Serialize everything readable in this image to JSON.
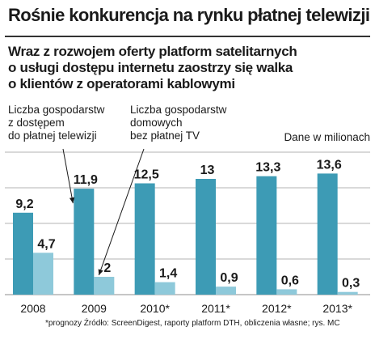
{
  "header": {
    "title": "Rośnie konkurencja na rynku płatnej telewizji",
    "subtitle_lines": [
      "Wraz z rozwojem oferty platform satelitarnych",
      "o usługi dostępu internetu zaostrzy się walka",
      "o klientów z operatorami kablowymi"
    ]
  },
  "legend": {
    "series1_lines": [
      "Liczba gospodarstw",
      "z dostępem",
      "do płatnej telewizji"
    ],
    "series2_lines": [
      "Liczba gospodarstw",
      "domowych",
      "bez płatnej TV"
    ]
  },
  "unit_label": "Dane w milionach",
  "footnote": "*prognozy  Źródło: ScreenDigest, raporty platform DTH, obliczenia własne;  rys. MC",
  "colors": {
    "series1": "#3d9bb5",
    "series2": "#8ec9da",
    "grid": "#b3b3b3",
    "text": "#1a1a1a"
  },
  "chart_data": {
    "type": "bar",
    "title": "Rośnie konkurencja na rynku płatnej telewizji",
    "categories": [
      "2008",
      "2009",
      "2010*",
      "2011*",
      "2012*",
      "2013*"
    ],
    "series": [
      {
        "name": "Liczba gospodarstw z dostępem do płatnej telewizji",
        "values": [
          9.2,
          11.9,
          12.5,
          13,
          13.3,
          13.6
        ],
        "labels": [
          "9,2",
          "11,9",
          "12,5",
          "13",
          "13,3",
          "13,6"
        ]
      },
      {
        "name": "Liczba gospodarstw domowych bez płatnej TV",
        "values": [
          4.7,
          2,
          1.4,
          0.9,
          0.6,
          0.3
        ],
        "labels": [
          "4,7",
          "2",
          "1,4",
          "0,9",
          "0,6",
          "0,3"
        ]
      }
    ],
    "ylim": [
      0,
      16
    ],
    "grid": true,
    "unit": "Dane w milionach"
  }
}
